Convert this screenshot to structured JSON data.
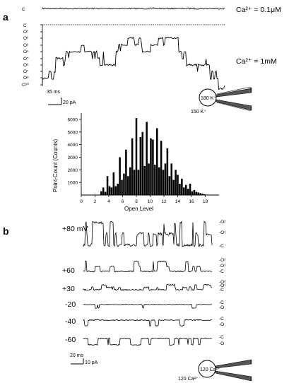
{
  "panel_a": {
    "letter": "a",
    "trace1_label": "C",
    "trace1_condition": "Ca²⁺ = 0.1μM",
    "trace2_condition": "Ca²⁺ = 1mM",
    "level_labels": [
      "C",
      "O¹",
      "O²",
      "O³",
      "O⁴",
      "O⁵",
      "O⁶",
      "O⁷",
      "O⁸",
      "O¹⁰"
    ],
    "scale_time": "35 ms",
    "scale_current": "20 pA",
    "diagram_inside": "180 K⁺",
    "diagram_outside": "150 K⁺"
  },
  "histogram": {
    "ylabel": "Point-Count (Counts)",
    "xlabel": "Open Level",
    "chart_data": {
      "type": "bar",
      "xlabel": "Open Level",
      "ylabel": "Point-Count (Counts)",
      "xlim": [
        0,
        20
      ],
      "ylim": [
        0,
        6500
      ],
      "xticks": [
        0,
        2,
        4,
        6,
        8,
        10,
        12,
        14,
        16,
        18
      ],
      "yticks": [
        1000,
        2000,
        3000,
        4000,
        5000,
        6000
      ],
      "x": [
        2.9,
        3.2,
        3.5,
        3.8,
        4.1,
        4.4,
        4.7,
        5.0,
        5.3,
        5.6,
        5.9,
        6.2,
        6.5,
        6.8,
        7.1,
        7.4,
        7.7,
        8.0,
        8.3,
        8.6,
        8.9,
        9.2,
        9.5,
        9.8,
        10.1,
        10.4,
        10.7,
        11.0,
        11.3,
        11.6,
        11.9,
        12.2,
        12.5,
        12.8,
        13.1,
        13.4,
        13.7,
        14.0,
        14.3,
        14.6,
        14.9,
        15.2,
        15.5,
        15.8,
        16.1,
        16.4,
        16.7,
        17.0,
        17.3,
        17.6,
        17.9
      ],
      "values": [
        300,
        600,
        250,
        1500,
        700,
        600,
        1800,
        700,
        900,
        3000,
        1200,
        1700,
        3600,
        1500,
        2200,
        4500,
        2000,
        6100,
        2000,
        4600,
        5000,
        2300,
        5800,
        2500,
        4500,
        4400,
        2400,
        5300,
        2200,
        4300,
        2000,
        2500,
        3700,
        1500,
        2500,
        1200,
        2000,
        1600,
        900,
        1300,
        600,
        800,
        500,
        900,
        300,
        400,
        250,
        200,
        150,
        100,
        60
      ]
    }
  },
  "panel_b": {
    "letter": "b",
    "voltages": [
      "+80 mV",
      "+60",
      "+30",
      "-20",
      "-40",
      "-60"
    ],
    "right_labels": [
      [
        "-O²",
        "-O¹",
        "-C"
      ],
      [
        "-O²",
        "-O¹",
        "-C"
      ],
      [
        "-O²",
        "-O¹",
        "-C"
      ],
      [
        "-C",
        "-O"
      ],
      [
        "-C",
        "-O"
      ],
      [
        "-C",
        "-O"
      ]
    ],
    "scale_time": "20 ms",
    "scale_current": "10 pA",
    "diagram_inside": "120 Ca²⁺",
    "diagram_outside": "120 Ca²⁺"
  }
}
